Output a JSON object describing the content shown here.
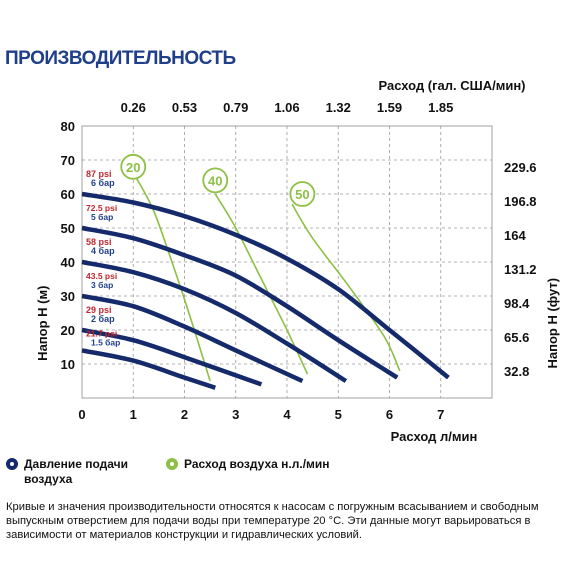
{
  "title": "ПРОИЗВОДИТЕЛЬНОСТЬ",
  "legend": {
    "pressure_label": "Давление подачи воздуха",
    "airflow_label": "Расход воздуха н.л./мин"
  },
  "footnote": "Кривые и значения производительности относятся к насосам с погружным всасыванием и свободным выпускным отверстием для подачи воды при температуре 20 °С. Эти данные могут варьироваться в зависимости от материалов конструкции и гидравлических условий.",
  "colors": {
    "pump_curve": "#142a6a",
    "air_curve": "#8dc045",
    "psi_text": "#c0272d",
    "bar_text": "#1f3f8a",
    "grid": "#9a9a9a"
  },
  "chart_data": {
    "type": "line",
    "xlabel": "Расход л/мин",
    "x2label": "Расход (гал. США/мин)",
    "ylabel": "Напор Н (м)",
    "y2label": "Напор Н (фут)",
    "xlim": [
      0,
      8
    ],
    "ylim": [
      0,
      80
    ],
    "x_ticks": [
      "0",
      "1",
      "2",
      "3",
      "4",
      "5",
      "6",
      "7"
    ],
    "y_ticks": [
      "10",
      "20",
      "30",
      "40",
      "50",
      "60",
      "70",
      "80"
    ],
    "x2_ticks": [
      {
        "x": 1,
        "label": "0.26"
      },
      {
        "x": 2,
        "label": "0.53"
      },
      {
        "x": 3,
        "label": "0.79"
      },
      {
        "x": 4,
        "label": "1.06"
      },
      {
        "x": 5,
        "label": "1.32"
      },
      {
        "x": 6,
        "label": "1.59"
      },
      {
        "x": 7,
        "label": "1.85"
      }
    ],
    "y2_ticks": [
      {
        "y": 8,
        "label": "32.8"
      },
      {
        "y": 18,
        "label": "65.6"
      },
      {
        "y": 28,
        "label": "98.4"
      },
      {
        "y": 38,
        "label": "131.2"
      },
      {
        "y": 48,
        "label": "164"
      },
      {
        "y": 58,
        "label": "196.8"
      },
      {
        "y": 68,
        "label": "229.6"
      }
    ],
    "grid": true,
    "pressure_series": [
      {
        "psi": "87 psi",
        "bar": "6 бар",
        "x": [
          0,
          1,
          2,
          3,
          4,
          5,
          6,
          7.15
        ],
        "y": [
          60,
          57.5,
          53.5,
          48,
          41,
          32,
          20,
          6
        ]
      },
      {
        "psi": "72.5 psi",
        "bar": "5 бар",
        "x": [
          0,
          1,
          2,
          3,
          4,
          5,
          6.15
        ],
        "y": [
          50,
          47,
          42,
          36,
          27,
          17,
          6
        ]
      },
      {
        "psi": "58 psi",
        "bar": "4 бар",
        "x": [
          0,
          1,
          2,
          3,
          4,
          5.15
        ],
        "y": [
          40,
          37,
          32,
          25,
          16,
          5
        ]
      },
      {
        "psi": "43.5 psi",
        "bar": "3 бар",
        "x": [
          0,
          1,
          2,
          3,
          4.3
        ],
        "y": [
          30,
          27,
          21,
          14,
          5
        ]
      },
      {
        "psi": "29 psi",
        "bar": "2 бар",
        "x": [
          0,
          1,
          2,
          3.5
        ],
        "y": [
          20,
          17,
          12,
          4
        ]
      },
      {
        "psi": "21.7 psi",
        "bar": "1.5 бар",
        "x": [
          0,
          1,
          2,
          2.6
        ],
        "y": [
          14,
          11,
          6,
          3
        ]
      }
    ],
    "air_series": [
      {
        "name": "20",
        "x": [
          1.05,
          1.4,
          1.8,
          2.15,
          2.5
        ],
        "y": [
          65,
          55,
          38,
          22,
          5
        ]
      },
      {
        "name": "40",
        "x": [
          2.6,
          3.0,
          3.5,
          4.0,
          4.4
        ],
        "y": [
          60,
          50,
          35,
          20,
          7
        ]
      },
      {
        "name": "50",
        "x": [
          4.1,
          4.5,
          5.2,
          5.9,
          6.2
        ],
        "y": [
          57,
          47,
          33,
          18,
          8
        ]
      }
    ],
    "air_badges": [
      {
        "label": "20",
        "x": 1.0,
        "y": 68
      },
      {
        "label": "40",
        "x": 2.6,
        "y": 64
      },
      {
        "label": "50",
        "x": 4.3,
        "y": 60
      }
    ]
  }
}
